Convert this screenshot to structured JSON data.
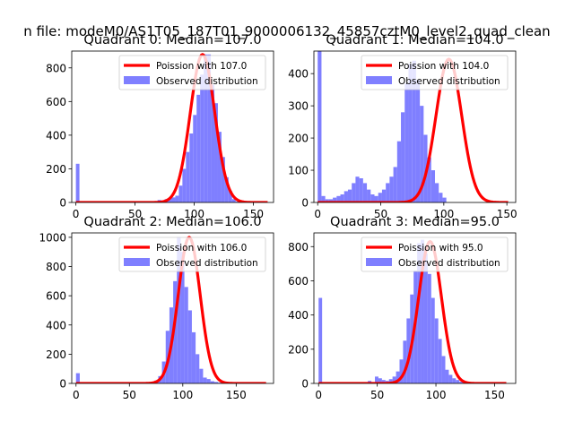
{
  "figure": {
    "suptitle": "n file: modeM0/AS1T05_187T01_9000006132_45857cztM0_level2_quad_clean"
  },
  "colors": {
    "poisson_line": "#ff0000",
    "histogram_fill": "#7f7fff",
    "axes_frame": "#000000"
  },
  "chart_data": [
    {
      "type": "bar",
      "title": "Quadrant 0: Median=107.0",
      "xlim": [
        -3.5,
        167
      ],
      "ylim": [
        0,
        900
      ],
      "xticks": [
        0,
        50,
        100,
        150
      ],
      "yticks": [
        0,
        200,
        400,
        600,
        800
      ],
      "legend_position": "top-right",
      "bin_width": 3,
      "hist_start": 0,
      "hist_values": [
        230,
        0,
        0,
        0,
        0,
        0,
        0,
        0,
        0,
        0,
        0,
        0,
        0,
        0,
        0,
        0,
        0,
        0,
        0,
        0,
        0,
        0,
        0,
        15,
        0,
        20,
        25,
        30,
        40,
        100,
        200,
        300,
        410,
        520,
        640,
        760,
        880,
        880,
        700,
        590,
        420,
        270,
        150,
        70,
        20,
        5,
        0,
        0,
        0,
        0,
        0,
        0,
        0,
        0
      ],
      "poisson_mean": 107.0,
      "poisson_peak": 880,
      "poisson_x_range": [
        0,
        162
      ],
      "series": [
        {
          "name": "Poission with 107.0",
          "kind": "line"
        },
        {
          "name": "Observed distribution",
          "kind": "histogram"
        }
      ]
    },
    {
      "type": "bar",
      "title": "Quadrant 1: Median=104.0",
      "xlim": [
        -3,
        157
      ],
      "ylim": [
        0,
        470
      ],
      "xticks": [
        0,
        50,
        100,
        150
      ],
      "yticks": [
        0,
        100,
        200,
        300,
        400
      ],
      "legend_position": "top-right",
      "bin_width": 3,
      "hist_start": 0,
      "hist_values": [
        470,
        20,
        10,
        10,
        15,
        20,
        25,
        35,
        40,
        60,
        80,
        75,
        60,
        40,
        25,
        20,
        30,
        40,
        60,
        80,
        110,
        190,
        280,
        370,
        430,
        440,
        380,
        300,
        210,
        140,
        100,
        60,
        30,
        15
      ],
      "poisson_mean": 104.0,
      "poisson_peak": 445,
      "poisson_x_range": [
        0,
        151
      ],
      "series": [
        {
          "name": "Poission with 104.0",
          "kind": "line"
        },
        {
          "name": "Observed distribution",
          "kind": "histogram"
        }
      ]
    },
    {
      "type": "bar",
      "title": "Quadrant 2: Median=106.0",
      "xlim": [
        -4,
        185
      ],
      "ylim": [
        0,
        1030
      ],
      "xticks": [
        0,
        50,
        100,
        150
      ],
      "yticks": [
        0,
        200,
        400,
        600,
        800,
        1000
      ],
      "legend_position": "top-right",
      "bin_width": 3.5,
      "hist_start": 0,
      "hist_values": [
        70,
        0,
        0,
        0,
        0,
        0,
        0,
        0,
        0,
        0,
        0,
        0,
        0,
        0,
        0,
        0,
        0,
        0,
        0,
        0,
        10,
        20,
        50,
        150,
        360,
        520,
        700,
        1000,
        900,
        660,
        500,
        350,
        200,
        100,
        40,
        30,
        15,
        10,
        5,
        0,
        0,
        0,
        0,
        0,
        0,
        0,
        0,
        0,
        0,
        0,
        0
      ],
      "poisson_mean": 106.0,
      "poisson_peak": 1000,
      "poisson_x_range": [
        0,
        178
      ],
      "series": [
        {
          "name": "Poission with 106.0",
          "kind": "line"
        },
        {
          "name": "Observed distribution",
          "kind": "histogram"
        }
      ]
    },
    {
      "type": "bar",
      "title": "Quadrant 3: Median=95.0",
      "xlim": [
        -4,
        168
      ],
      "ylim": [
        0,
        880
      ],
      "xticks": [
        0,
        50,
        100,
        150
      ],
      "yticks": [
        0,
        200,
        400,
        600,
        800
      ],
      "legend_position": "top-right",
      "bin_width": 3,
      "hist_start": 0,
      "hist_values": [
        500,
        0,
        0,
        0,
        0,
        0,
        0,
        0,
        0,
        0,
        0,
        0,
        0,
        0,
        15,
        0,
        40,
        30,
        20,
        15,
        25,
        40,
        70,
        140,
        250,
        380,
        520,
        660,
        820,
        840,
        760,
        640,
        500,
        380,
        260,
        160,
        80,
        50,
        30,
        20,
        10,
        5,
        0,
        0,
        0,
        0,
        0,
        0,
        0,
        0,
        0,
        0,
        0,
        0
      ],
      "poisson_mean": 95.0,
      "poisson_peak": 830,
      "poisson_x_range": [
        0,
        160
      ],
      "series": [
        {
          "name": "Poission with 95.0",
          "kind": "line"
        },
        {
          "name": "Observed distribution",
          "kind": "histogram"
        }
      ]
    }
  ]
}
